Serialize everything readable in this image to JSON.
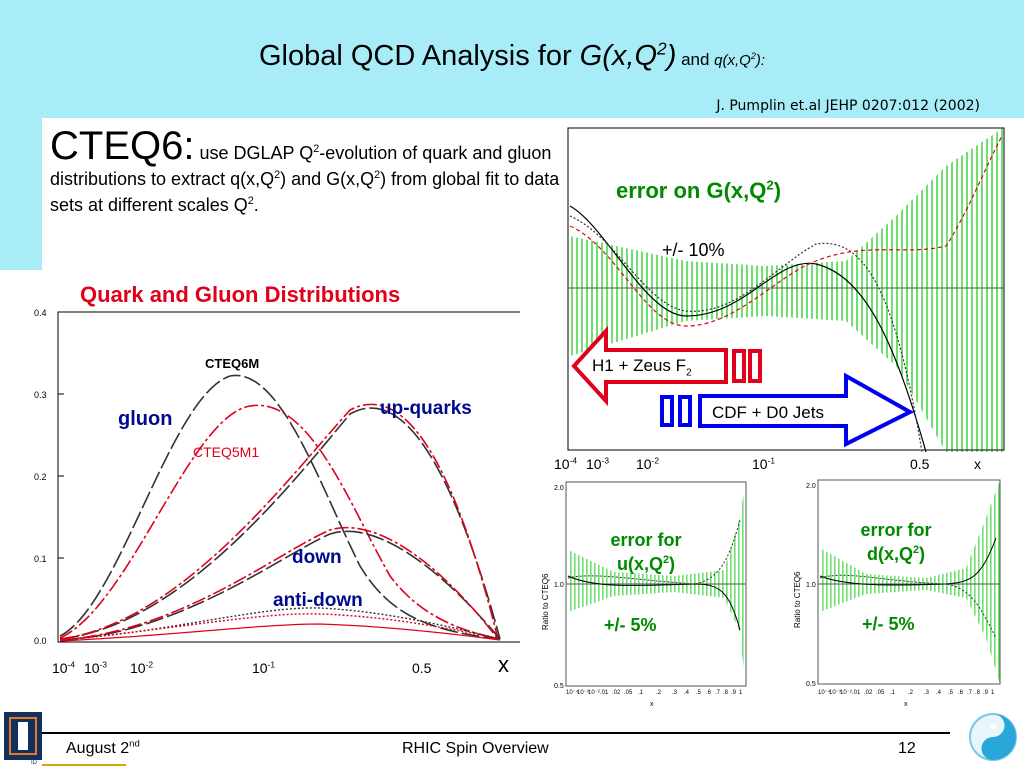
{
  "slide": {
    "title": {
      "main": "Global QCD Analysis for ",
      "g": "G(x,Q",
      "g_sup": "2",
      "g_close": ")",
      "and": " and ",
      "q": "q(x,Q",
      "q_sup": "2",
      "q_close": "):"
    },
    "reference": "J. Pumplin et.al JEHP 0207:012 (2002)",
    "intro": {
      "lead": "CTEQ6:",
      "p1": " use DGLAP Q",
      "sup1": "2",
      "p2": "-evolution  of quark and gluon distributions to extract q(x,Q",
      "sup2": "2",
      "p3": ") and G(x,Q",
      "sup3": "2",
      "p4": ") from global fit to data sets at different scales Q",
      "sup4": "2",
      "p5": "."
    },
    "footer": {
      "date": "August 2",
      "date_sup": "nd",
      "center": "RHIC Spin Overview",
      "page": "12",
      "logo_text": "ID"
    }
  },
  "plots": {
    "qg": {
      "title": "Quark and Gluon Distributions",
      "yticks": [
        "0.4",
        "0.3",
        "0.2",
        "0.1",
        "0.0"
      ],
      "xticks": [
        {
          "base": "10",
          "exp": "-4"
        },
        {
          "base": "10",
          "exp": "-3"
        },
        {
          "base": "10",
          "exp": "-2"
        },
        {
          "base": "10",
          "exp": "-1"
        },
        {
          "base": "0.5",
          "exp": ""
        }
      ],
      "xlabel": "x",
      "labels": {
        "cteq6m": "CTEQ6M",
        "cteq5m1": "CTEQ5M1",
        "gluon": "gluon",
        "up": "up-quarks",
        "down": "down",
        "antidown": "anti-down"
      }
    },
    "gerr": {
      "title": "error on G(x,Q",
      "title_sup": "2",
      "title_close": ")",
      "band": "+/- 10%",
      "h1": "H1 + Zeus F",
      "h1_sub": "2",
      "cdf": "CDF + D0 Jets",
      "xticks": [
        {
          "base": "10",
          "exp": "-4"
        },
        {
          "base": "10",
          "exp": "-3"
        },
        {
          "base": "10",
          "exp": "-2"
        },
        {
          "base": "10",
          "exp": "-1"
        },
        {
          "base": "0.5",
          "exp": ""
        },
        {
          "base": "x",
          "exp": ""
        }
      ]
    },
    "uerr": {
      "title1": "error for",
      "title2": "u(x,Q",
      "title_sup": "2",
      "title_close": ")",
      "band": "+/- 5%",
      "ylabel": "Ratio to CTEQ6",
      "yticks": [
        "2.0",
        "1.0",
        "0.5"
      ],
      "xticks": [
        "10⁻⁴",
        "10⁻³",
        "10⁻²",
        ".01",
        ".02",
        ".05",
        ".1",
        ".2",
        ".3",
        ".4",
        ".5",
        ".6",
        ".7",
        ".8",
        ".9",
        "1"
      ],
      "xlabel": "x"
    },
    "derr": {
      "title1": "error for",
      "title2": "d(x,Q",
      "title_sup": "2",
      "title_close": ")",
      "band": "+/- 5%",
      "ylabel": "Ratio to CTEQ6",
      "yticks": [
        "2.0",
        "1.0",
        "0.5"
      ],
      "xticks": [
        "10⁻⁴",
        "10⁻³",
        "10⁻²",
        ".01",
        ".02",
        ".05",
        ".1",
        ".2",
        ".3",
        ".4",
        ".5",
        ".6",
        ".7",
        ".8",
        ".9",
        "1"
      ],
      "xlabel": "x"
    }
  },
  "colors": {
    "header": "#a8ecf7",
    "red": "#e0001b",
    "navy": "#000b8c",
    "green": "#008a00",
    "band": "#7ee87e",
    "arrow_blue": "#0000ee"
  },
  "chart_data": [
    {
      "type": "line",
      "title": "Quark and Gluon Distributions",
      "xlabel": "x",
      "x_scale": "log-like",
      "ylim": [
        0,
        0.4
      ],
      "series": [
        {
          "name": "gluon",
          "x": [
            0.0001,
            0.001,
            0.01,
            0.05,
            0.1,
            0.3,
            0.5
          ],
          "values": [
            0.0,
            0.05,
            0.2,
            0.31,
            0.3,
            0.12,
            0.0
          ]
        },
        {
          "name": "up-quarks",
          "x": [
            0.0001,
            0.01,
            0.05,
            0.1,
            0.2,
            0.3,
            0.5
          ],
          "values": [
            0.0,
            0.02,
            0.08,
            0.17,
            0.27,
            0.25,
            0.0
          ]
        },
        {
          "name": "down",
          "x": [
            0.0001,
            0.01,
            0.05,
            0.1,
            0.2,
            0.3,
            0.5
          ],
          "values": [
            0.0,
            0.01,
            0.04,
            0.09,
            0.13,
            0.11,
            0.0
          ]
        },
        {
          "name": "anti-down",
          "x": [
            0.0001,
            0.01,
            0.05,
            0.1,
            0.2,
            0.3,
            0.5
          ],
          "values": [
            0.0,
            0.01,
            0.025,
            0.03,
            0.025,
            0.015,
            0.0
          ]
        }
      ]
    }
  ]
}
